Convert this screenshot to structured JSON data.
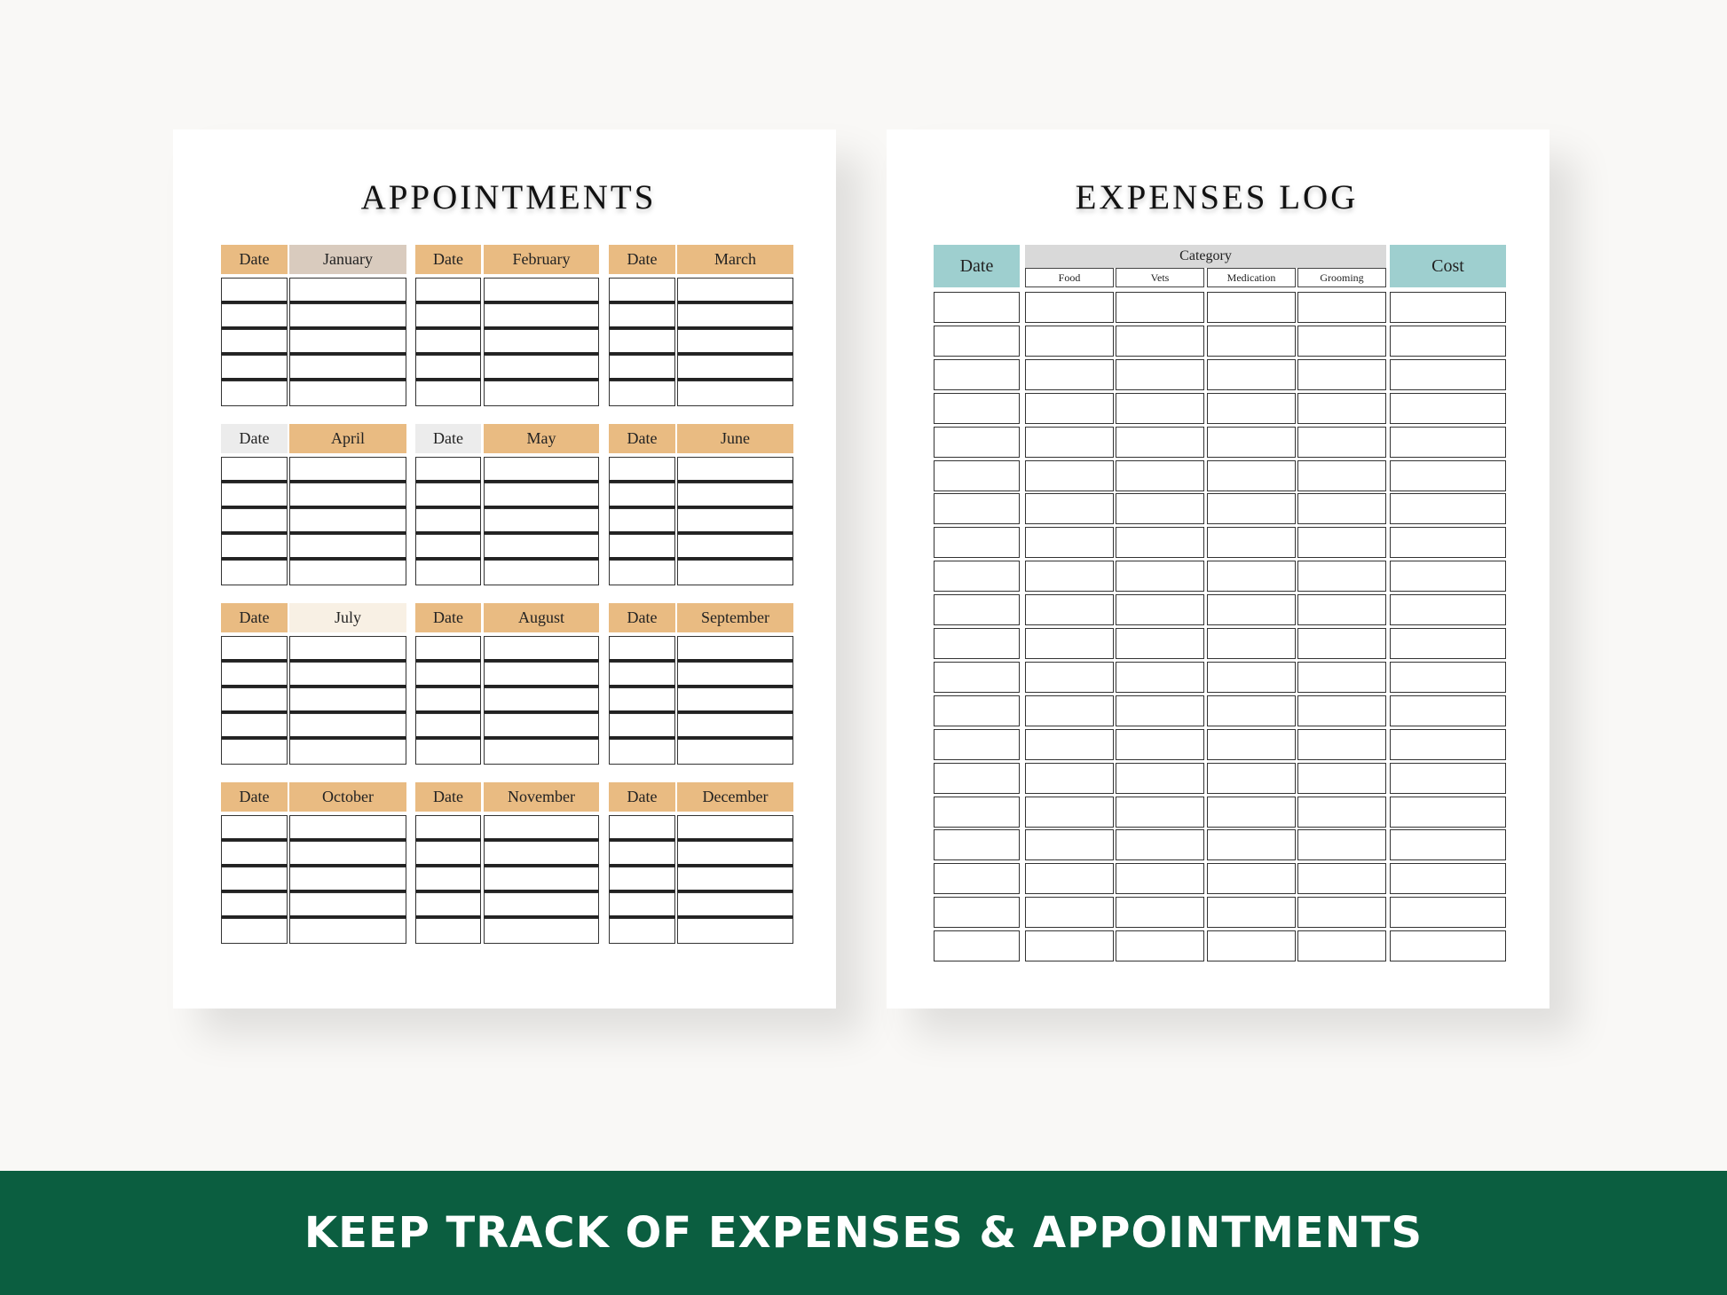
{
  "appointments": {
    "title": "APPOINTMENTS",
    "date_label": "Date",
    "months": [
      {
        "name": "January",
        "date_color": "#e9bb82",
        "month_color": "#d9cbbe"
      },
      {
        "name": "February",
        "date_color": "#e9bb82",
        "month_color": "#e9bb82"
      },
      {
        "name": "March",
        "date_color": "#e9bb82",
        "month_color": "#e9bb82"
      },
      {
        "name": "April",
        "date_color": "#ececec",
        "month_color": "#e9bb82"
      },
      {
        "name": "May",
        "date_color": "#ececec",
        "month_color": "#e9bb82"
      },
      {
        "name": "June",
        "date_color": "#e9bb82",
        "month_color": "#e9bb82"
      },
      {
        "name": "July",
        "date_color": "#e9bb82",
        "month_color": "#f8f0e4"
      },
      {
        "name": "August",
        "date_color": "#e9bb82",
        "month_color": "#e9bb82"
      },
      {
        "name": "September",
        "date_color": "#e9bb82",
        "month_color": "#e9bb82"
      },
      {
        "name": "October",
        "date_color": "#e9bb82",
        "month_color": "#e9bb82"
      },
      {
        "name": "November",
        "date_color": "#e9bb82",
        "month_color": "#e9bb82"
      },
      {
        "name": "December",
        "date_color": "#e9bb82",
        "month_color": "#e9bb82"
      }
    ]
  },
  "expenses": {
    "title": "EXPENSES LOG",
    "date_label": "Date",
    "category_label": "Category",
    "categories": [
      "Food",
      "Vets",
      "Medication",
      "Grooming"
    ],
    "cost_label": "Cost",
    "accent_color": "#9ecfcf",
    "category_color": "#d9d9d9"
  },
  "banner": {
    "text": "KEEP TRACK OF EXPENSES & APPOINTMENTS",
    "color": "#0b5e40"
  }
}
